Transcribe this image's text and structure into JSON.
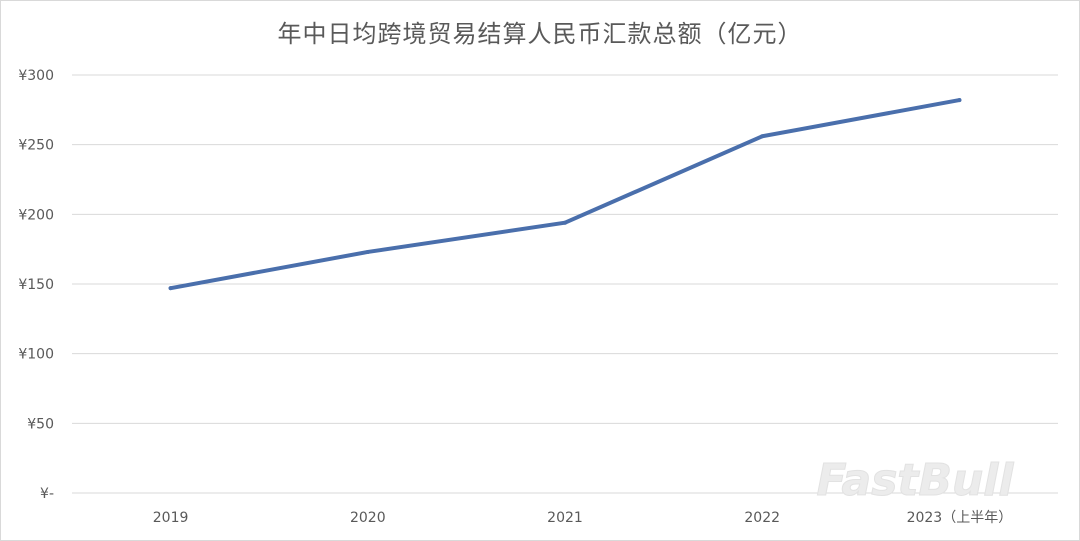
{
  "chart_data": {
    "type": "line",
    "title": "年中日均跨境贸易结算人民币汇款总额（亿元）",
    "xlabel": "",
    "ylabel": "",
    "categories": [
      "2019",
      "2020",
      "2021",
      "2022",
      "2023（上半年）"
    ],
    "series": [
      {
        "values": [
          147,
          173,
          194,
          256,
          282
        ]
      }
    ],
    "ylim": [
      0,
      300
    ],
    "yticks": [
      0,
      50,
      100,
      150,
      200,
      250,
      300
    ],
    "ytick_labels": [
      "¥-",
      "¥50",
      "¥100",
      "¥150",
      "¥200",
      "¥250",
      "¥300"
    ],
    "grid": true,
    "legend": "none",
    "line_color": "#4a6fac",
    "grid_color": "#d9d9d9"
  },
  "watermark": "FastBull"
}
